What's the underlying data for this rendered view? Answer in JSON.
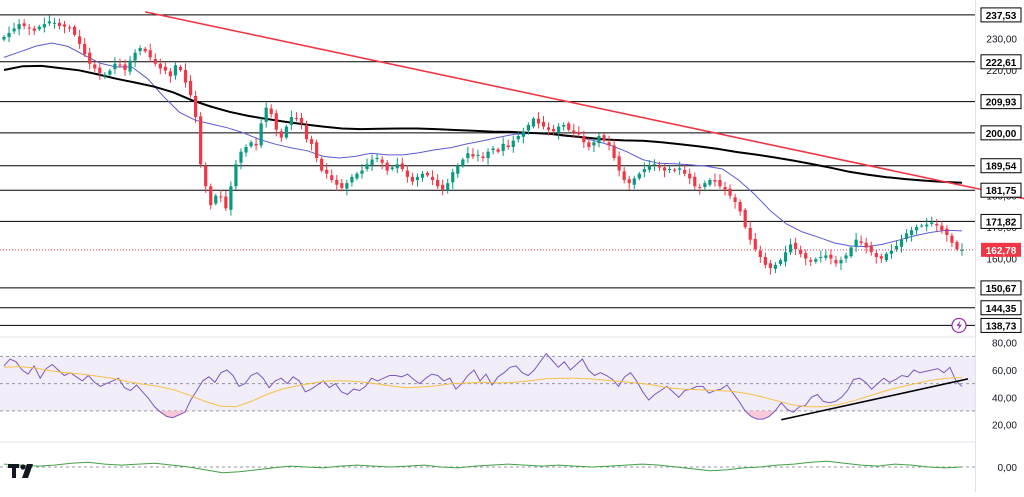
{
  "app": {
    "brand_icon": "tradingview-logo-icon",
    "flash_icon": "lightning-icon"
  },
  "colors": {
    "up": "#089981",
    "down": "#f23645",
    "ma_fast": "#5b5bd6",
    "ma_slow": "#000000",
    "trendline": "#f23645",
    "rsi_line": "#7e57c2",
    "rsi_ma": "#f7c046",
    "rsi_band": "#ede7f6",
    "rsi_trend": "#000000",
    "price_tag": "#f23645",
    "level_tag": "#ffffff",
    "osc": "#43a047",
    "flash": "#9c27b0"
  },
  "chart_data": [
    {
      "type": "candlestick",
      "panel": "price",
      "ylim": [
        136,
        241
      ],
      "tick_labels": [
        {
          "value": 230,
          "label": "230,00"
        },
        {
          "value": 220,
          "label": "220,00"
        },
        {
          "value": 210,
          "label": "210,00"
        },
        {
          "value": 200,
          "label": "200,00"
        },
        {
          "value": 190,
          "label": "190,00"
        },
        {
          "value": 180,
          "label": "180,00"
        },
        {
          "value": 170,
          "label": "170,00"
        },
        {
          "value": 160,
          "label": "160,00"
        }
      ],
      "levels": [
        {
          "value": 237.53,
          "label": "237,53"
        },
        {
          "value": 222.61,
          "label": "222,61"
        },
        {
          "value": 209.93,
          "label": "209,93"
        },
        {
          "value": 200.0,
          "label": "200,00"
        },
        {
          "value": 189.54,
          "label": "189,54"
        },
        {
          "value": 181.75,
          "label": "181,75"
        },
        {
          "value": 171.82,
          "label": "171,82"
        },
        {
          "value": 150.67,
          "label": "150,67"
        },
        {
          "value": 144.35,
          "label": "144,35"
        },
        {
          "value": 138.73,
          "label": "138,73"
        }
      ],
      "last_price": {
        "value": 162.78,
        "label": "162,78"
      },
      "close_series": [
        230.5,
        231.8,
        233.2,
        234.6,
        234.0,
        233.2,
        232.5,
        233.8,
        234.6,
        235.5,
        235.0,
        234.0,
        233.8,
        233.5,
        231.2,
        228.3,
        225.0,
        222.0,
        220.5,
        219.0,
        218.5,
        219.8,
        222.0,
        221.5,
        220.0,
        223.0,
        225.5,
        227.0,
        226.0,
        224.0,
        222.0,
        220.5,
        219.8,
        218.0,
        221.5,
        220.0,
        216.0,
        212.0,
        205.0,
        190.0,
        183.0,
        177.0,
        180.0,
        179.5,
        176.0,
        183.0,
        190.0,
        194.0,
        195.5,
        197.0,
        196.0,
        203.0,
        208.0,
        206.0,
        201.0,
        198.5,
        202.0,
        205.0,
        204.5,
        203.0,
        198.0,
        196.5,
        192.0,
        188.0,
        187.0,
        185.0,
        183.5,
        182.5,
        184.0,
        186.0,
        187.0,
        188.0,
        190.0,
        191.5,
        192.0,
        190.5,
        188.0,
        189.0,
        190.0,
        188.5,
        186.0,
        184.5,
        186.0,
        187.0,
        186.5,
        185.0,
        183.0,
        182.0,
        184.0,
        187.5,
        189.5,
        191.5,
        193.5,
        192.5,
        193.0,
        192.0,
        194.0,
        195.0,
        194.0,
        196.5,
        195.5,
        197.5,
        199.0,
        200.5,
        202.5,
        204.5,
        203.0,
        202.0,
        201.0,
        200.5,
        202.0,
        202.5,
        201.0,
        200.0,
        199.5,
        197.0,
        195.5,
        197.0,
        199.0,
        197.5,
        196.0,
        192.0,
        188.0,
        185.0,
        184.0,
        185.5,
        187.0,
        188.5,
        189.5,
        190.0,
        189.0,
        188.0,
        188.5,
        188.0,
        188.7,
        187.0,
        185.5,
        183.0,
        182.5,
        184.0,
        185.0,
        184.5,
        183.0,
        182.0,
        180.0,
        178.0,
        175.0,
        170.0,
        166.0,
        163.0,
        160.5,
        158.0,
        157.0,
        158.0,
        159.5,
        162.0,
        164.5,
        163.0,
        161.5,
        160.0,
        159.0,
        159.8,
        160.5,
        161.0,
        160.0,
        158.5,
        159.5,
        161.0,
        163.5,
        166.0,
        165.0,
        163.5,
        162.0,
        160.5,
        160.0,
        161.5,
        162.5,
        164.0,
        166.0,
        168.0,
        169.0,
        170.0,
        170.5,
        170.8,
        171.5,
        170.5,
        169.0,
        167.5,
        165.0,
        163.0,
        162.78
      ],
      "ma_fast": {
        "start": 0,
        "values": [
          224.0,
          225.8,
          227.6,
          228.6,
          227.5,
          224.8,
          222.2,
          221.0,
          221.0,
          217.2,
          211.5,
          206.5,
          204.0,
          202.8,
          201.6,
          200.0,
          197.9,
          196.4,
          195.2,
          194.3,
          192.5,
          192.0,
          192.5,
          193.5,
          193.0,
          193.0,
          193.7,
          194.6,
          195.3,
          196.5,
          197.5,
          198.6,
          199.6,
          199.8,
          199.8,
          199.0,
          198.6,
          197.5,
          196.0,
          194.0,
          191.5,
          190.3,
          190.2,
          189.8,
          189.4,
          188.5,
          185.0,
          180.5,
          175.2,
          171.0,
          168.5,
          166.8,
          165.0,
          164.0,
          163.8,
          164.5,
          165.8,
          167.2,
          168.3,
          169.0,
          168.8
        ]
      },
      "ma_slow": {
        "start": 0,
        "values": [
          220.0,
          221.2,
          221.3,
          220.6,
          219.9,
          218.6,
          217.2,
          216.0,
          214.7,
          212.9,
          210.4,
          208.4,
          206.7,
          205.4,
          204.4,
          203.5,
          202.7,
          202.0,
          201.4,
          201.2,
          201.3,
          201.4,
          201.4,
          201.2,
          200.9,
          200.7,
          200.4,
          200.3,
          200.0,
          199.7,
          199.1,
          198.5,
          197.9,
          197.6,
          197.5,
          197.0,
          196.4,
          195.7,
          194.9,
          193.9,
          193.1,
          192.2,
          191.2,
          190.1,
          188.9,
          187.6,
          186.7,
          185.9,
          185.3,
          184.8,
          184.4,
          184.1
        ]
      },
      "trendline": {
        "from": [
          28,
          238.5
        ],
        "to": [
          204,
          178.5
        ]
      }
    },
    {
      "type": "line",
      "panel": "rsi",
      "ylim": [
        16,
        82
      ],
      "tick_labels": [
        {
          "value": 80,
          "label": "80,00"
        },
        {
          "value": 60,
          "label": "60,00"
        },
        {
          "value": 40,
          "label": "40,00"
        },
        {
          "value": 20,
          "label": "20,00"
        }
      ],
      "band": [
        30,
        70
      ],
      "midline": 50,
      "series": [
        {
          "kind": "rsi",
          "values": [
            63,
            68,
            66,
            60,
            57,
            63,
            54,
            61,
            64,
            60,
            56,
            58,
            55,
            52,
            56,
            51,
            48,
            50,
            52,
            54,
            47,
            45,
            49,
            44,
            39,
            33,
            29,
            26,
            25,
            27,
            29,
            38,
            45,
            52,
            55,
            51,
            58,
            60,
            56,
            48,
            50,
            56,
            58,
            54,
            47,
            52,
            54,
            50,
            55,
            52,
            44,
            46,
            49,
            52,
            47,
            50,
            44,
            42,
            46,
            45,
            48,
            54,
            52,
            54,
            56,
            56,
            55,
            57,
            53,
            50,
            54,
            57,
            56,
            52,
            54,
            46,
            50,
            56,
            60,
            52,
            57,
            49,
            55,
            58,
            62,
            63,
            58,
            56,
            60,
            66,
            72,
            67,
            62,
            66,
            60,
            64,
            68,
            60,
            56,
            58,
            56,
            53,
            48,
            55,
            58,
            52,
            44,
            38,
            42,
            45,
            48,
            44,
            40,
            45,
            46,
            48,
            48,
            43,
            45,
            46,
            49,
            43,
            37,
            30,
            26,
            24,
            24,
            26,
            30,
            36,
            31,
            29,
            33,
            34,
            40,
            42,
            37,
            36,
            37,
            40,
            45,
            53,
            54,
            51,
            46,
            50,
            54,
            51,
            53,
            56,
            55,
            60,
            58,
            59,
            60,
            61,
            58,
            62,
            52,
            48
          ]
        },
        {
          "kind": "rsi_ma",
          "values": [
            62.0,
            62.5,
            61.5,
            59.5,
            58.0,
            57.0,
            55.5,
            54.0,
            51.5,
            49.5,
            48.0,
            45.5,
            41.5,
            37.0,
            33.5,
            33.0,
            37.0,
            42.0,
            46.0,
            48.5,
            50.5,
            52.0,
            52.0,
            51.5,
            50.0,
            48.5,
            47.0,
            47.5,
            48.5,
            50.0,
            50.5,
            51.0,
            50.5,
            51.0,
            52.0,
            53.5,
            54.0,
            54.0,
            53.5,
            52.5,
            51.5,
            50.5,
            49.0,
            47.0,
            46.0,
            45.5,
            45.0,
            44.5,
            43.0,
            40.5,
            37.5,
            34.5,
            33.0,
            33.0,
            34.5,
            37.5,
            41.0,
            44.5,
            47.5,
            50.0,
            52.5,
            54.0,
            54.5
          ]
        }
      ],
      "trendline": {
        "from": [
          129,
          23.5
        ],
        "to": [
          160,
          53.5
        ]
      }
    },
    {
      "type": "line",
      "panel": "oscillator",
      "ylim": [
        -2,
        2
      ],
      "tick_labels": [
        {
          "value": 0,
          "label": "0,00"
        }
      ],
      "series": [
        {
          "kind": "osc",
          "values": [
            0.3,
            0.2,
            0.1,
            0.2,
            0.4,
            0.5,
            0.3,
            0.2,
            0.3,
            0.4,
            0.2,
            0.0,
            -0.3,
            -0.6,
            -0.5,
            -0.3,
            -0.1,
            0.1,
            0.0,
            -0.1,
            0.1,
            0.2,
            0.1,
            0.0,
            0.1,
            0.2,
            0.0,
            -0.1,
            0.1,
            0.2,
            0.3,
            0.2,
            0.1,
            0.2,
            0.1,
            0.0,
            0.1,
            0.2,
            0.3,
            0.2,
            0.0,
            -0.2,
            -0.4,
            -0.3,
            -0.1,
            0.0,
            0.2,
            0.3,
            0.5,
            0.6,
            0.4,
            0.2,
            0.1,
            0.3,
            0.2,
            0.0,
            -0.1,
            0.0
          ]
        }
      ]
    }
  ]
}
